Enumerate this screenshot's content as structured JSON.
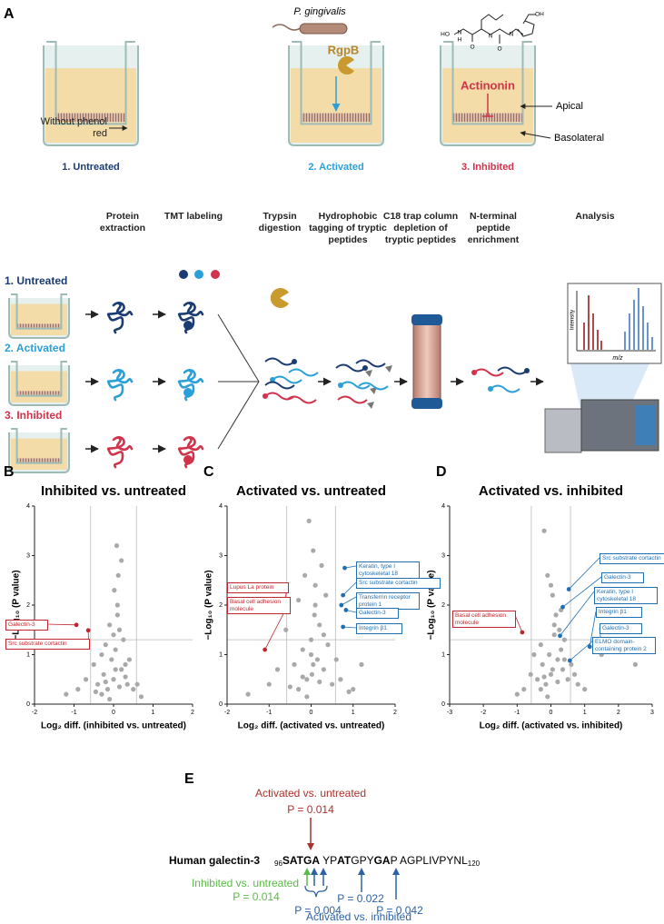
{
  "panel_a": {
    "letter": "A",
    "bacterium": "P. gingivalis",
    "protease": "RgpB",
    "inhibitor": "Actinonin",
    "molecule_atoms": [
      "HO",
      "N",
      "H",
      "O",
      "N",
      "O",
      "N",
      "OH"
    ],
    "media_label": "Without phenol red",
    "compartments": [
      "Apical",
      "Basolateral"
    ],
    "conditions": [
      "1. Untreated",
      "2. Activated",
      "3. Inhibited"
    ],
    "condition_colors": [
      "#1b3b73",
      "#2ba0d8",
      "#d1334b"
    ],
    "steps": [
      "Protein extraction",
      "TMT labeling",
      "Trypsin digestion",
      "Hydrophobic tagging of tryptic peptides",
      "C18 trap column depletion of tryptic peptides",
      "N-terminal peptide enrichment",
      "Analysis"
    ],
    "spectrum_axes": [
      "Intensity",
      "m/z"
    ]
  },
  "chart_data": [
    {
      "type": "scatter",
      "letter": "B",
      "title": "Inhibited vs. untreated",
      "x_label": "Log₂ diff. (inhibited vs. untreated)",
      "y_label": "−Log₁₀ (P value)",
      "color": "#a9a9a9",
      "xlim": [
        -2,
        2
      ],
      "xticks": [
        -2,
        -1,
        0,
        1,
        2
      ],
      "ylim": [
        0,
        4
      ],
      "yticks": [
        0,
        1,
        2,
        3,
        4
      ],
      "x_thresholds": [
        -0.58,
        0.58
      ],
      "y_threshold": 1.3,
      "x": [
        -1.2,
        -0.9,
        -0.7,
        -0.5,
        -0.4,
        -0.3,
        -0.25,
        -0.2,
        -0.15,
        -0.1,
        -0.05,
        0,
        0.02,
        0.05,
        0.08,
        0.1,
        0.12,
        0.15,
        0.2,
        0.25,
        0.3,
        0.35,
        0.4,
        0.5,
        -0.3,
        -0.1,
        0.05,
        0.1,
        0.15,
        0.2,
        -0.2,
        0,
        0.3,
        -0.45,
        0.6,
        0.7
      ],
      "values": [
        0.2,
        0.3,
        0.5,
        0.8,
        0.4,
        1.0,
        0.6,
        1.2,
        0.3,
        1.6,
        0.9,
        0.5,
        2.3,
        1.1,
        3.2,
        2.0,
        2.6,
        1.5,
        0.7,
        1.3,
        0.8,
        0.4,
        0.9,
        0.3,
        0.2,
        0.1,
        0.7,
        1.8,
        0.35,
        2.9,
        0.45,
        1.4,
        0.55,
        0.25,
        0.4,
        0.15
      ],
      "annotations": [
        {
          "label": "Galectin-3",
          "x": -0.94,
          "y": 1.6,
          "color": "#c0262f"
        },
        {
          "label": "Src substrate cortactin",
          "x": -0.64,
          "y": 1.49,
          "color": "#c0262f"
        }
      ]
    },
    {
      "type": "scatter",
      "letter": "C",
      "title": "Activated vs. untreated",
      "x_label": "Log₂ diff. (activated vs. untreated)",
      "y_label": "−Log₁₀ (P value)",
      "color": "#a9a9a9",
      "xlim": [
        -2,
        2
      ],
      "xticks": [
        -2,
        -1,
        0,
        1,
        2
      ],
      "ylim": [
        0,
        4
      ],
      "yticks": [
        0,
        1,
        2,
        3,
        4
      ],
      "x_thresholds": [
        -0.58,
        0.58
      ],
      "y_threshold": 1.3,
      "x": [
        -1.5,
        -1.0,
        -0.8,
        -0.6,
        -0.4,
        -0.3,
        -0.2,
        -0.15,
        -0.1,
        -0.05,
        0,
        0.02,
        0.05,
        0.08,
        0.1,
        0.15,
        0.2,
        0.25,
        0.3,
        0.4,
        0.5,
        0.6,
        0.7,
        1.0,
        -0.3,
        -0.1,
        0.05,
        0.1,
        0.2,
        0.3,
        -0.2,
        0,
        0.35,
        -0.5,
        1.2,
        0.9
      ],
      "values": [
        0.2,
        0.4,
        0.7,
        1.5,
        0.8,
        2.1,
        1.1,
        2.6,
        0.5,
        3.7,
        1.3,
        0.6,
        3.1,
        1.8,
        2.4,
        0.9,
        1.6,
        2.8,
        0.7,
        1.2,
        0.4,
        0.9,
        0.5,
        0.3,
        0.3,
        0.15,
        0.8,
        2.0,
        0.45,
        1.4,
        0.55,
        1.0,
        2.2,
        0.35,
        0.8,
        0.25
      ],
      "annotations": [
        {
          "label": "Lupus La protein",
          "x": -0.67,
          "y": 1.98,
          "color": "#c0262f"
        },
        {
          "label": "Basal cell adhesion molecule",
          "x": -1.1,
          "y": 1.1,
          "color": "#c0262f"
        },
        {
          "label": "Keratin, type I cytoskeletal 18",
          "x": 0.8,
          "y": 2.75,
          "color": "#1f6fb4"
        },
        {
          "label": "Src substrate cortactin",
          "x": 0.76,
          "y": 2.2,
          "color": "#1f6fb4"
        },
        {
          "label": "Transferrin receptor protein 1",
          "x": 0.72,
          "y": 2.0,
          "color": "#1f6fb4"
        },
        {
          "label": "Galectin-3",
          "x": 0.83,
          "y": 1.9,
          "color": "#1f6fb4"
        },
        {
          "label": "Integrin β1",
          "x": 0.76,
          "y": 1.56,
          "color": "#1f6fb4"
        }
      ]
    },
    {
      "type": "scatter",
      "letter": "D",
      "title": "Activated vs. inhibited",
      "x_label": "Log₂ diff. (activated vs. inhibited)",
      "y_label": "−Log₁₀ (P value)",
      "color": "#a9a9a9",
      "xlim": [
        -3,
        3
      ],
      "xticks": [
        -3,
        -2,
        -1,
        0,
        1,
        2,
        3
      ],
      "ylim": [
        0,
        4
      ],
      "yticks": [
        0,
        1,
        2,
        3,
        4
      ],
      "x_thresholds": [
        -0.58,
        0.58
      ],
      "y_threshold": 1.3,
      "x": [
        -1.0,
        -0.8,
        -0.6,
        -0.5,
        -0.4,
        -0.3,
        -0.25,
        -0.2,
        -0.15,
        -0.1,
        -0.05,
        0,
        0.05,
        0.1,
        0.15,
        0.2,
        0.25,
        0.3,
        0.35,
        0.4,
        0.5,
        0.6,
        0.8,
        1.0,
        -0.3,
        -0.1,
        0.05,
        0.1,
        0.2,
        0.3,
        -0.2,
        0,
        0.4,
        1.5,
        2.5,
        0.7
      ],
      "values": [
        0.2,
        0.3,
        0.6,
        1.0,
        0.5,
        1.2,
        0.8,
        3.5,
        0.4,
        2.6,
        1.0,
        0.6,
        2.2,
        1.4,
        1.8,
        0.9,
        1.5,
        1.1,
        0.7,
        1.3,
        0.5,
        0.8,
        0.4,
        0.3,
        0.3,
        0.15,
        0.7,
        1.6,
        0.45,
        1.9,
        0.55,
        2.4,
        0.9,
        1.0,
        0.8,
        0.6
      ],
      "annotations": [
        {
          "label": "Basal cell adhesion molecule",
          "x": -0.85,
          "y": 1.45,
          "color": "#c0262f"
        },
        {
          "label": "Src substrate cortactin",
          "x": 0.53,
          "y": 2.32,
          "color": "#1f6fb4"
        },
        {
          "label": "Galectin-3",
          "x": 0.35,
          "y": 1.96,
          "color": "#1f6fb4"
        },
        {
          "label": "Keratin, type I cytoskeletal 18",
          "x": 0.27,
          "y": 1.38,
          "color": "#1f6fb4"
        },
        {
          "label": "Integrin β1",
          "x": 1.15,
          "y": 1.16,
          "color": "#1f6fb4"
        },
        {
          "label": "Galectin-3",
          "x": 1.5,
          "y": 1.14,
          "color": "#1f6fb4"
        },
        {
          "label": "ELMO domain-containing protein 2",
          "x": 0.56,
          "y": 0.88,
          "color": "#1f6fb4"
        }
      ]
    }
  ],
  "panel_e": {
    "letter": "E",
    "protein": "Human galectin-3",
    "start": "96",
    "end": "120",
    "sequence": [
      {
        "text": "SATGA",
        "bold": true
      },
      {
        "text": " YP",
        "bold": false
      },
      {
        "text": "AT",
        "bold": true
      },
      {
        "text": "GPY",
        "bold": false
      },
      {
        "text": "GA",
        "bold": true
      },
      {
        "text": "P  AGPLIVPYNL",
        "bold": false
      }
    ],
    "comparisons": [
      {
        "name": "Activated vs. untreated",
        "color": "#a8322c",
        "p": [
          "P = 0.014"
        ]
      },
      {
        "name": "Inhibited vs. untreated",
        "color": "#5db94a",
        "p": [
          "P = 0.014"
        ]
      },
      {
        "name": "Activated vs. inhibited",
        "color": "#2e62a3",
        "p": [
          "P = 0.004",
          "P = 0.022",
          "P = 0.042"
        ]
      }
    ]
  }
}
